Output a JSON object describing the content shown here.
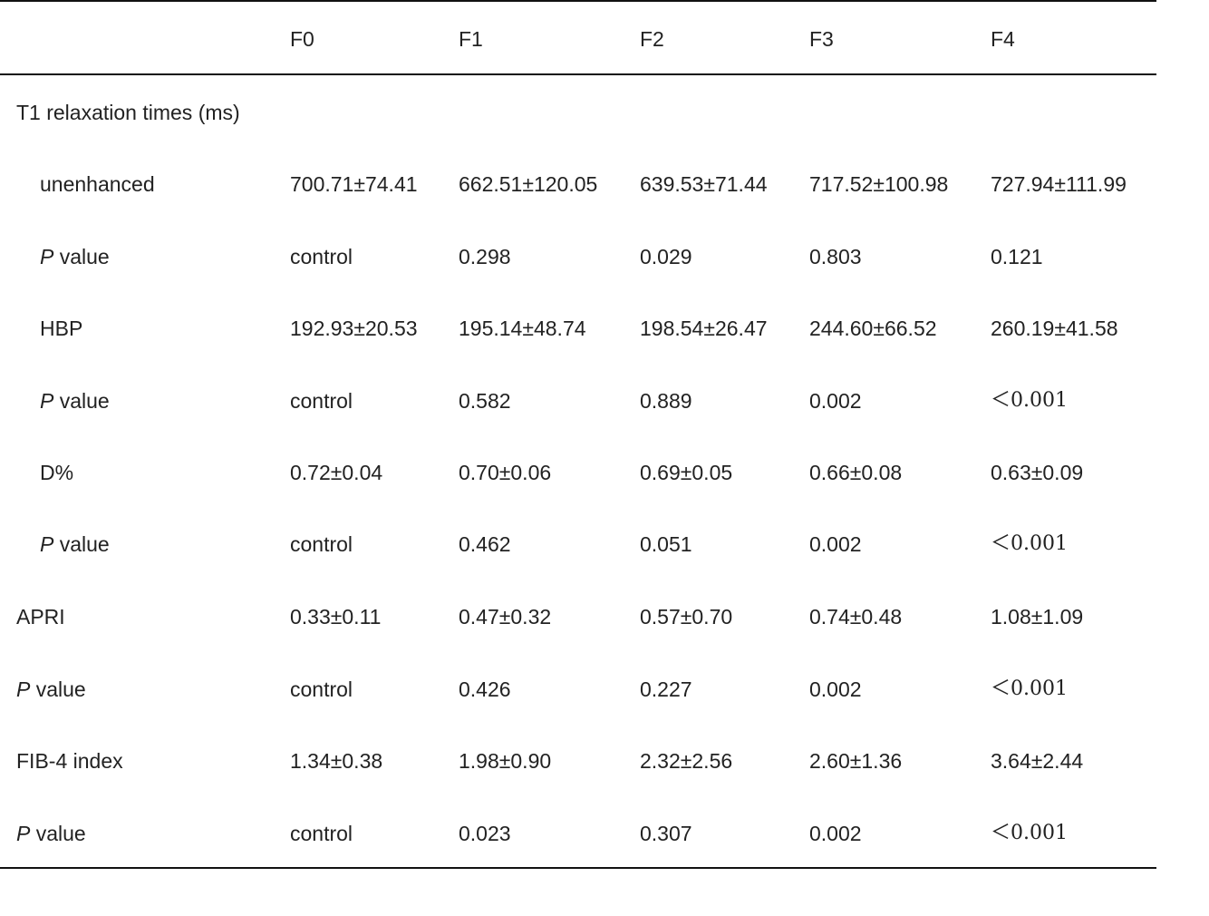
{
  "header": {
    "columns": [
      "",
      "F0",
      "F1",
      "F2",
      "F3",
      "F4"
    ]
  },
  "rows": [
    {
      "label": "T1 relaxation times (ms)",
      "indent": false,
      "p_label": false,
      "cells": [
        "",
        "",
        "",
        "",
        ""
      ]
    },
    {
      "label": "unenhanced",
      "indent": true,
      "p_label": false,
      "cells": [
        "700.71±74.41",
        "662.51±120.05",
        "639.53±71.44",
        "717.52±100.98",
        "727.94±111.99"
      ]
    },
    {
      "label": "P",
      "label_suffix": " value",
      "indent": true,
      "p_label": true,
      "cells": [
        "control",
        "0.298",
        "0.029",
        "0.803",
        "0.121"
      ]
    },
    {
      "label": "HBP",
      "indent": true,
      "p_label": false,
      "cells": [
        "192.93±20.53",
        "195.14±48.74",
        "198.54±26.47",
        "244.60±66.52",
        "260.19±41.58"
      ]
    },
    {
      "label": "P",
      "label_suffix": " value",
      "indent": true,
      "p_label": true,
      "cells": [
        "control",
        "0.582",
        "0.889",
        "0.002",
        "＜0.001"
      ]
    },
    {
      "label": "D%",
      "indent": true,
      "p_label": false,
      "cells": [
        "0.72±0.04",
        "0.70±0.06",
        "0.69±0.05",
        "0.66±0.08",
        "0.63±0.09"
      ]
    },
    {
      "label": "P",
      "label_suffix": " value",
      "indent": true,
      "p_label": true,
      "cells": [
        "control",
        "0.462",
        "0.051",
        "0.002",
        "＜0.001"
      ]
    },
    {
      "label": "APRI",
      "indent": false,
      "p_label": false,
      "cells": [
        "0.33±0.11",
        "0.47±0.32",
        "0.57±0.70",
        "0.74±0.48",
        "1.08±1.09"
      ]
    },
    {
      "label": "P",
      "label_suffix": " value",
      "indent": false,
      "p_label": true,
      "cells": [
        "control",
        "0.426",
        "0.227",
        "0.002",
        "＜0.001"
      ]
    },
    {
      "label": "FIB-4 index",
      "indent": false,
      "p_label": false,
      "cells": [
        "1.34±0.38",
        "1.98±0.90",
        "2.32±2.56",
        "2.60±1.36",
        "3.64±2.44"
      ]
    },
    {
      "label": "P",
      "label_suffix": " value",
      "indent": false,
      "p_label": true,
      "cells": [
        "control",
        "0.023",
        "0.307",
        "0.002",
        "＜0.001"
      ]
    }
  ]
}
